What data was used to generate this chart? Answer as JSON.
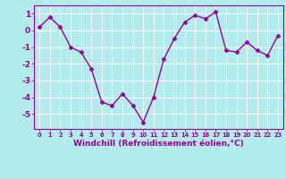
{
  "x": [
    0,
    1,
    2,
    3,
    4,
    5,
    6,
    7,
    8,
    9,
    10,
    11,
    12,
    13,
    14,
    15,
    16,
    17,
    18,
    19,
    20,
    21,
    22,
    23
  ],
  "y": [
    0.2,
    0.8,
    0.2,
    -1.0,
    -1.3,
    -2.3,
    -4.3,
    -4.5,
    -3.8,
    -4.5,
    -5.5,
    -4.0,
    -1.7,
    -0.5,
    0.5,
    0.9,
    0.7,
    1.1,
    -1.2,
    -1.3,
    -0.7,
    -1.2,
    -1.5,
    -0.3
  ],
  "line_color": "#990099",
  "marker": "D",
  "markersize": 2.5,
  "linewidth": 1,
  "xlim": [
    -0.5,
    23.5
  ],
  "ylim": [
    -5.9,
    1.5
  ],
  "yticks": [
    1,
    0,
    -1,
    -2,
    -3,
    -4,
    -5
  ],
  "xticks": [
    0,
    1,
    2,
    3,
    4,
    5,
    6,
    7,
    8,
    9,
    10,
    11,
    12,
    13,
    14,
    15,
    16,
    17,
    18,
    19,
    20,
    21,
    22,
    23
  ],
  "xlabel": "Windchill (Refroidissement éolien,°C)",
  "background_color": "#b3ecec",
  "grid_color": "#ffffff",
  "line_border_color": "#990099",
  "tick_color": "#990099",
  "label_color": "#990099",
  "xlabel_fontsize": 6.5,
  "xtick_fontsize": 4.8,
  "ytick_fontsize": 6.5
}
